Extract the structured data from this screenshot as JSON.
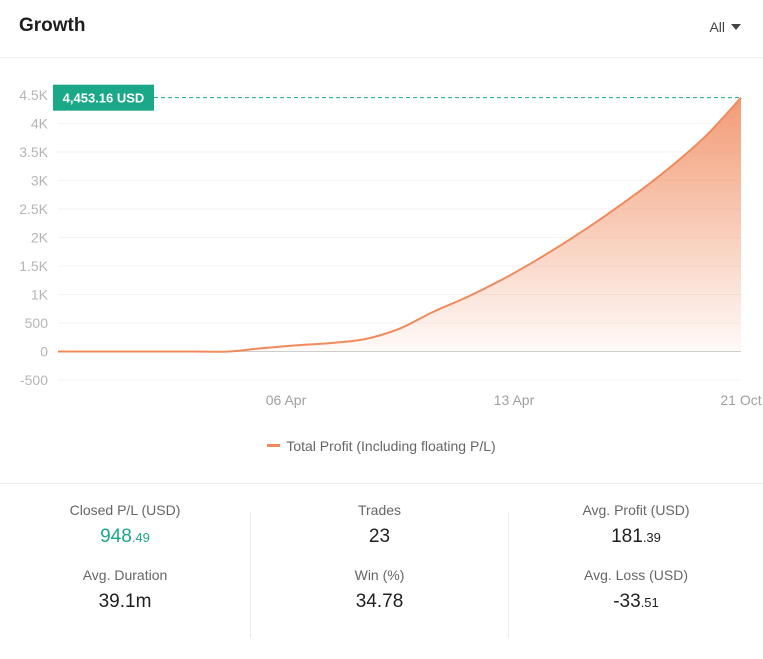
{
  "header": {
    "title": "Growth",
    "range_label": "All"
  },
  "chart_data": {
    "type": "area",
    "title": "Growth",
    "y_ticks": [
      "4.5K",
      "4K",
      "3.5K",
      "3K",
      "2.5K",
      "2K",
      "1.5K",
      "1K",
      "500",
      "0",
      "-500"
    ],
    "ylim": [
      -500,
      4500
    ],
    "x_ticks": [
      "06 Apr",
      "13 Apr",
      "21 Oct"
    ],
    "series": [
      {
        "name": "Total Profit (Including floating P/L)",
        "values": [
          0,
          0,
          0,
          0,
          0,
          0,
          60,
          110,
          150,
          220,
          400,
          700,
          960,
          1260,
          1600,
          1970,
          2370,
          2800,
          3270,
          3800,
          4453.16
        ]
      }
    ],
    "last_value_label": "4,453.16 USD",
    "line_color": "#f08a5d",
    "marker_color": "#1aa889",
    "grid": true
  },
  "legend": {
    "label": "Total Profit (Including floating P/L)"
  },
  "stats": {
    "closed_pl": {
      "label": "Closed P/L (USD)",
      "int": "948",
      "dec": ".49"
    },
    "trades": {
      "label": "Trades",
      "value": "23"
    },
    "avg_profit": {
      "label": "Avg. Profit (USD)",
      "int": "181",
      "dec": ".39"
    },
    "avg_duration": {
      "label": "Avg. Duration",
      "value": "39.1m"
    },
    "win": {
      "label": "Win (%)",
      "value": "34.78"
    },
    "avg_loss": {
      "label": "Avg. Loss (USD)",
      "int": "-33",
      "dec": ".51"
    }
  }
}
